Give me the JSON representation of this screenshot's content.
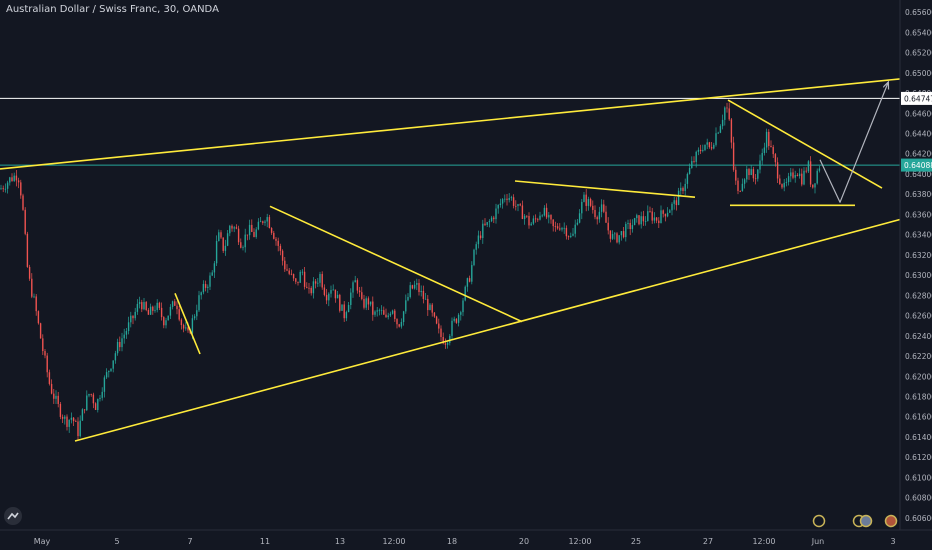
{
  "header": {
    "title": "Australian Dollar / Swiss Franc, 30, OANDA"
  },
  "chart_data": {
    "type": "candlestick",
    "title": "Australian Dollar / Swiss Franc, 30, OANDA",
    "ylim": [
      0.6048,
      0.6572
    ],
    "y_ticks": [
      "0.65600",
      "0.65400",
      "0.65200",
      "0.65000",
      "0.64800",
      "0.64600",
      "0.64400",
      "0.64200",
      "0.64000",
      "0.63800",
      "0.63600",
      "0.63400",
      "0.63200",
      "0.63000",
      "0.62800",
      "0.62600",
      "0.62400",
      "0.62200",
      "0.62000",
      "0.61800",
      "0.61600",
      "0.61400",
      "0.61200",
      "0.61000",
      "0.60800",
      "0.60600"
    ],
    "x_ticks": [
      "May",
      "5",
      "7",
      "11",
      "13",
      "12:00",
      "18",
      "20",
      "12:00",
      "25",
      "27",
      "12:00",
      "Jun",
      "3"
    ],
    "price_labels": [
      {
        "text": "0.64747",
        "value": 0.64747,
        "color": "#ffffff",
        "text_color": "#131722"
      },
      {
        "text": "0.64088",
        "value": 0.64088,
        "color": "#26a69a",
        "text_color": "#ffffff"
      }
    ],
    "horizontal_lines": [
      {
        "value": 0.64747,
        "color": "#ffffff"
      },
      {
        "value": 0.64088,
        "color": "#26a69a"
      }
    ],
    "price_path": [
      [
        0,
        0.6385
      ],
      [
        10,
        0.6395
      ],
      [
        18,
        0.64
      ],
      [
        22,
        0.6375
      ],
      [
        28,
        0.63
      ],
      [
        35,
        0.627
      ],
      [
        42,
        0.623
      ],
      [
        50,
        0.619
      ],
      [
        58,
        0.617
      ],
      [
        66,
        0.6155
      ],
      [
        72,
        0.616
      ],
      [
        78,
        0.6145
      ],
      [
        84,
        0.617
      ],
      [
        90,
        0.6185
      ],
      [
        96,
        0.617
      ],
      [
        102,
        0.619
      ],
      [
        110,
        0.621
      ],
      [
        118,
        0.623
      ],
      [
        126,
        0.6245
      ],
      [
        134,
        0.626
      ],
      [
        140,
        0.6275
      ],
      [
        148,
        0.626
      ],
      [
        156,
        0.627
      ],
      [
        164,
        0.6255
      ],
      [
        170,
        0.6265
      ],
      [
        176,
        0.6275
      ],
      [
        182,
        0.625
      ],
      [
        188,
        0.624
      ],
      [
        194,
        0.626
      ],
      [
        200,
        0.628
      ],
      [
        206,
        0.629
      ],
      [
        212,
        0.63
      ],
      [
        218,
        0.634
      ],
      [
        224,
        0.6325
      ],
      [
        230,
        0.635
      ],
      [
        236,
        0.6345
      ],
      [
        242,
        0.633
      ],
      [
        248,
        0.6345
      ],
      [
        254,
        0.634
      ],
      [
        260,
        0.635
      ],
      [
        266,
        0.636
      ],
      [
        272,
        0.6345
      ],
      [
        278,
        0.633
      ],
      [
        284,
        0.631
      ],
      [
        290,
        0.63
      ],
      [
        296,
        0.629
      ],
      [
        302,
        0.6305
      ],
      [
        308,
        0.628
      ],
      [
        314,
        0.629
      ],
      [
        320,
        0.63
      ],
      [
        326,
        0.628
      ],
      [
        332,
        0.629
      ],
      [
        338,
        0.6275
      ],
      [
        344,
        0.626
      ],
      [
        350,
        0.628
      ],
      [
        356,
        0.6295
      ],
      [
        362,
        0.627
      ],
      [
        368,
        0.6275
      ],
      [
        374,
        0.626
      ],
      [
        380,
        0.6265
      ],
      [
        386,
        0.6255
      ],
      [
        392,
        0.627
      ],
      [
        398,
        0.625
      ],
      [
        404,
        0.6265
      ],
      [
        410,
        0.6285
      ],
      [
        416,
        0.629
      ],
      [
        422,
        0.628
      ],
      [
        428,
        0.627
      ],
      [
        434,
        0.6255
      ],
      [
        440,
        0.624
      ],
      [
        446,
        0.6235
      ],
      [
        452,
        0.625
      ],
      [
        458,
        0.626
      ],
      [
        464,
        0.628
      ],
      [
        470,
        0.63
      ],
      [
        476,
        0.633
      ],
      [
        482,
        0.6345
      ],
      [
        488,
        0.635
      ],
      [
        494,
        0.636
      ],
      [
        500,
        0.637
      ],
      [
        506,
        0.638
      ],
      [
        512,
        0.6375
      ],
      [
        518,
        0.6365
      ],
      [
        524,
        0.636
      ],
      [
        530,
        0.635
      ],
      [
        536,
        0.6355
      ],
      [
        542,
        0.6365
      ],
      [
        548,
        0.6355
      ],
      [
        554,
        0.6345
      ],
      [
        560,
        0.635
      ],
      [
        566,
        0.6345
      ],
      [
        572,
        0.6335
      ],
      [
        578,
        0.636
      ],
      [
        584,
        0.6375
      ],
      [
        590,
        0.637
      ],
      [
        596,
        0.636
      ],
      [
        602,
        0.6365
      ],
      [
        608,
        0.6345
      ],
      [
        614,
        0.6335
      ],
      [
        620,
        0.634
      ],
      [
        626,
        0.6345
      ],
      [
        632,
        0.635
      ],
      [
        638,
        0.6355
      ],
      [
        644,
        0.6355
      ],
      [
        650,
        0.636
      ],
      [
        656,
        0.6355
      ],
      [
        662,
        0.636
      ],
      [
        668,
        0.6365
      ],
      [
        674,
        0.637
      ],
      [
        680,
        0.638
      ],
      [
        686,
        0.6395
      ],
      [
        692,
        0.641
      ],
      [
        698,
        0.642
      ],
      [
        704,
        0.643
      ],
      [
        710,
        0.6425
      ],
      [
        716,
        0.644
      ],
      [
        722,
        0.6455
      ],
      [
        726,
        0.647
      ],
      [
        730,
        0.6445
      ],
      [
        734,
        0.64
      ],
      [
        738,
        0.638
      ],
      [
        742,
        0.6395
      ],
      [
        748,
        0.6405
      ],
      [
        754,
        0.6395
      ],
      [
        760,
        0.641
      ],
      [
        766,
        0.644
      ],
      [
        772,
        0.642
      ],
      [
        778,
        0.64
      ],
      [
        784,
        0.6385
      ],
      [
        790,
        0.6395
      ],
      [
        796,
        0.6405
      ],
      [
        802,
        0.6395
      ],
      [
        808,
        0.641
      ],
      [
        812,
        0.6385
      ],
      [
        816,
        0.64
      ],
      [
        820,
        0.641
      ]
    ],
    "trend_lines": [
      {
        "points": [
          [
            0,
            0.6405
          ],
          [
            900,
            0.6494
          ]
        ],
        "color": "#ffeb3b"
      },
      {
        "points": [
          [
            75,
            0.6136
          ],
          [
            900,
            0.6355
          ]
        ],
        "color": "#ffeb3b"
      },
      {
        "points": [
          [
            175,
            0.6282
          ],
          [
            200,
            0.6222
          ]
        ],
        "color": "#ffeb3b"
      },
      {
        "points": [
          [
            270,
            0.6368
          ],
          [
            522,
            0.6254
          ]
        ],
        "color": "#ffeb3b"
      },
      {
        "points": [
          [
            515,
            0.6393
          ],
          [
            695,
            0.6377
          ]
        ],
        "color": "#ffeb3b"
      },
      {
        "points": [
          [
            728,
            0.6473
          ],
          [
            882,
            0.6386
          ]
        ],
        "color": "#ffeb3b"
      },
      {
        "points": [
          [
            730,
            0.6369
          ],
          [
            855,
            0.6369
          ]
        ],
        "color": "#ffeb3b"
      },
      {
        "points": [
          [
            820,
            0.6414
          ],
          [
            840,
            0.6372
          ],
          [
            888,
            0.649
          ]
        ],
        "color": "#b2b5be",
        "arrow": true
      }
    ]
  }
}
